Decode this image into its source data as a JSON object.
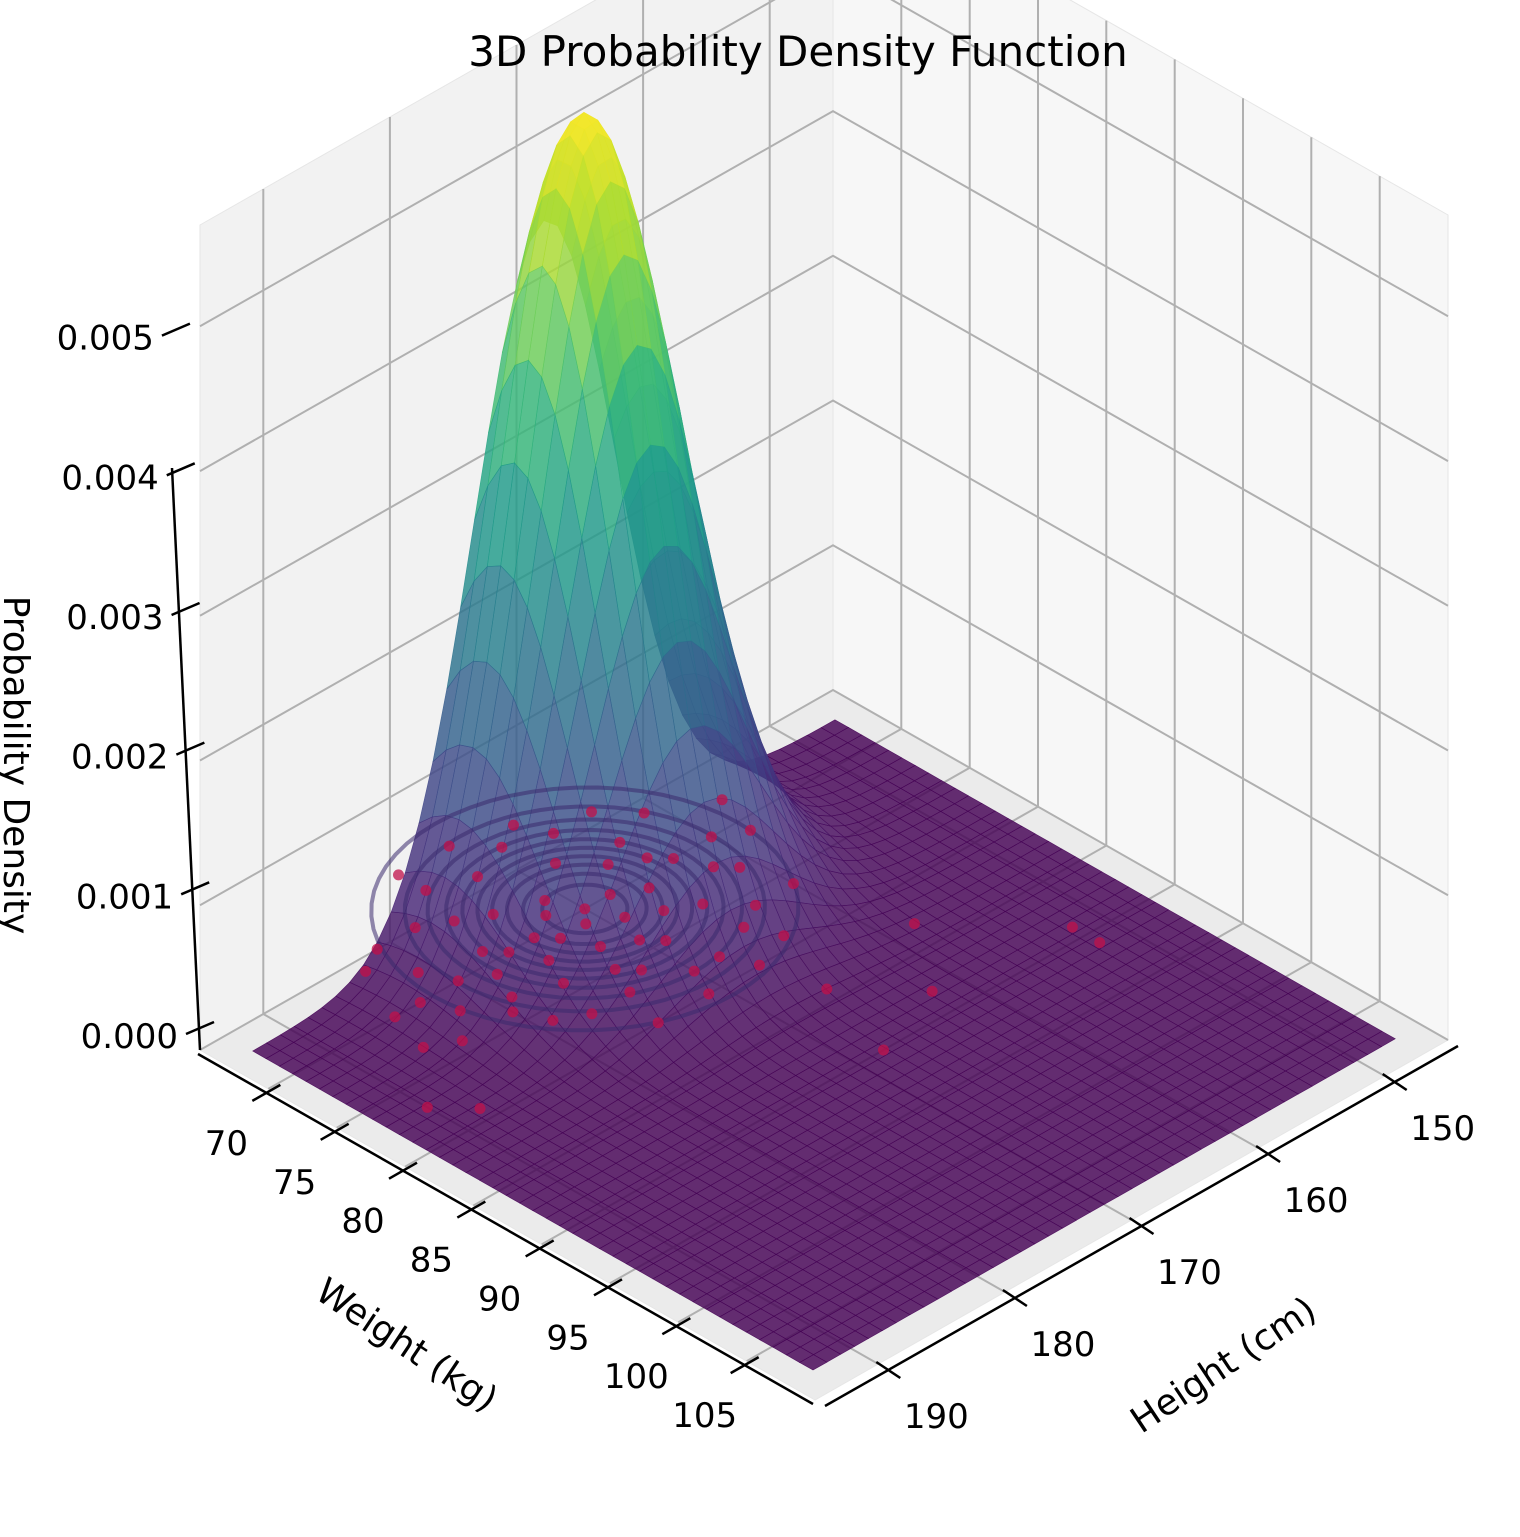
{
  "chart_data": {
    "type": "surface3d",
    "title": "3D Probability Density Function",
    "x_axis": {
      "label": "Height (cm)",
      "range": [
        145,
        195
      ],
      "ticks": [
        150,
        160,
        170,
        180,
        190
      ]
    },
    "y_axis": {
      "label": "Weight (kg)",
      "range": [
        65,
        110
      ],
      "ticks": [
        70,
        75,
        80,
        85,
        90,
        95,
        100,
        105
      ]
    },
    "z_axis": {
      "label": "Probability Density",
      "range": [
        0,
        0.0057
      ],
      "ticks": [
        "0.000",
        "0.001",
        "0.002",
        "0.003",
        "0.004",
        "0.005"
      ]
    },
    "distribution": {
      "mean_height": 170,
      "mean_weight": 70,
      "sd_height": 5.5,
      "sd_weight": 5,
      "peak_density": 0.0055
    },
    "colormap": "viridis",
    "grid": true,
    "contours_on_floor": true,
    "contour_levels": 10,
    "scatter_color": "#c0104a",
    "scatter_points": [
      [
        158,
        71
      ],
      [
        160,
        70
      ],
      [
        161,
        73
      ],
      [
        162,
        72
      ],
      [
        163,
        70
      ],
      [
        164,
        69
      ],
      [
        165,
        74
      ],
      [
        166,
        71
      ],
      [
        166,
        68
      ],
      [
        167,
        73
      ],
      [
        168,
        70
      ],
      [
        168,
        66
      ],
      [
        169,
        72
      ],
      [
        170,
        70
      ],
      [
        170,
        74
      ],
      [
        171,
        68
      ],
      [
        171,
        71
      ],
      [
        172,
        73
      ],
      [
        172,
        69
      ],
      [
        173,
        71
      ],
      [
        174,
        70
      ],
      [
        174,
        67
      ],
      [
        175,
        72
      ],
      [
        176,
        70
      ],
      [
        176,
        74
      ],
      [
        177,
        69
      ],
      [
        178,
        71
      ],
      [
        179,
        73
      ],
      [
        180,
        70
      ],
      [
        181,
        68
      ],
      [
        182,
        72
      ],
      [
        183,
        70
      ],
      [
        163,
        76
      ],
      [
        165,
        77
      ],
      [
        168,
        78
      ],
      [
        170,
        78
      ],
      [
        172,
        76
      ],
      [
        174,
        77
      ],
      [
        177,
        77
      ],
      [
        179,
        76
      ],
      [
        161,
        66
      ],
      [
        163,
        64
      ],
      [
        166,
        64
      ],
      [
        169,
        63
      ],
      [
        172,
        64
      ],
      [
        175,
        63
      ],
      [
        178,
        65
      ],
      [
        181,
        65
      ],
      [
        164,
        79
      ],
      [
        167,
        80
      ],
      [
        171,
        80
      ],
      [
        175,
        80
      ],
      [
        167,
        62
      ],
      [
        171,
        61
      ],
      [
        175,
        61
      ],
      [
        169,
        75
      ],
      [
        173,
        75
      ],
      [
        176,
        66
      ],
      [
        164,
        67
      ],
      [
        180,
        74
      ],
      [
        184,
        74
      ],
      [
        185,
        70
      ],
      [
        183,
        66
      ],
      [
        160,
        76
      ],
      [
        157,
        68
      ],
      [
        186,
        73
      ],
      [
        188,
        79
      ],
      [
        190,
        77
      ],
      [
        152,
        89
      ],
      [
        152,
        91
      ],
      [
        162,
        88
      ],
      [
        168,
        90
      ],
      [
        158,
        83
      ],
      [
        166,
        84
      ]
    ]
  }
}
